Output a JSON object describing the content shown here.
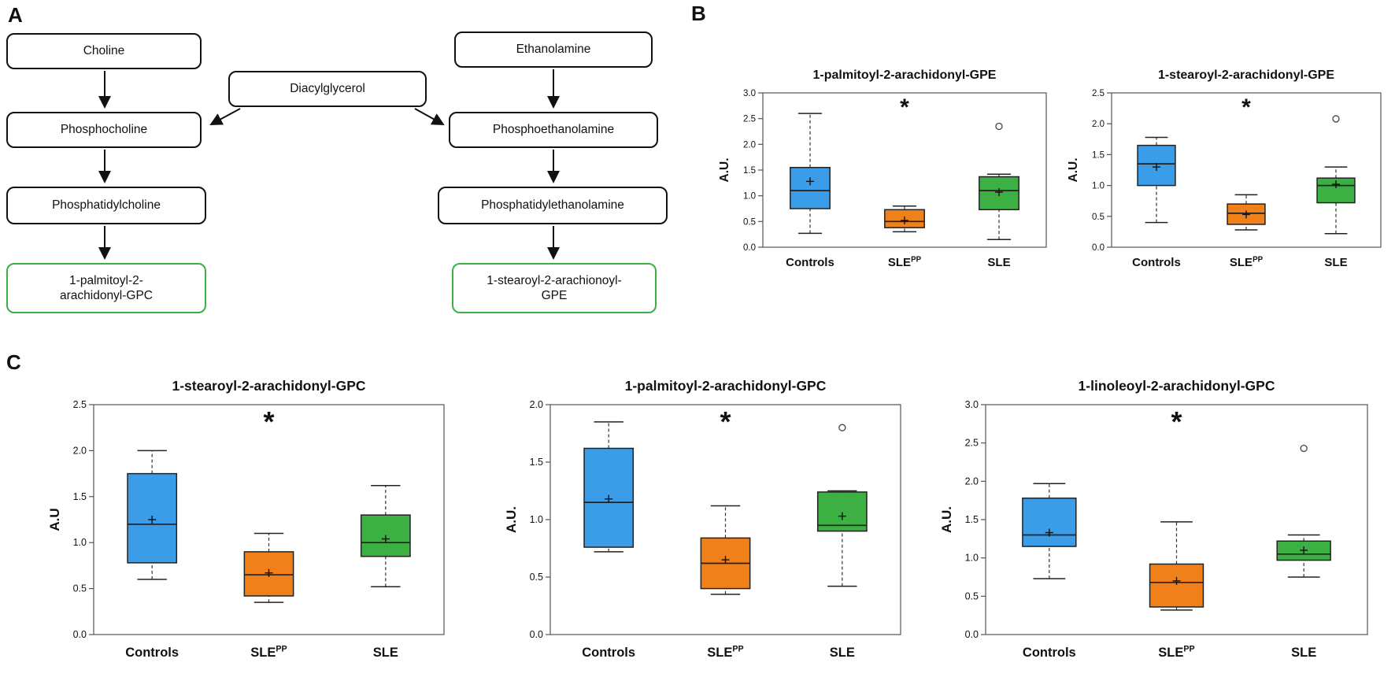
{
  "panels": {
    "a_label": "A",
    "b_label": "B",
    "c_label": "C"
  },
  "diagram": {
    "highlight_color": "#3CB043",
    "nodes": {
      "choline": "Choline",
      "phosphocholine": "Phosphocholine",
      "phosphatidylcholine": "Phosphatidylcholine",
      "gpc": "1-palmitoyl-2-\narachidonyl-GPC",
      "diacylglycerol": "Diacylglycerol",
      "ethanolamine": "Ethanolamine",
      "phosphoethanolamine": "Phosphoethanolamine",
      "phosphatidylethanolamine": "Phosphatidylethanolamine",
      "gpe": "1-stearoyl-2-arachionoyl-\nGPE"
    }
  },
  "chart_data": [
    {
      "type": "box",
      "title": "1-palmitoyl-2-arachidonyl-GPE",
      "ylabel": "A.U.",
      "ylim": [
        0,
        3.0
      ],
      "yticks": [
        0,
        0.5,
        1.0,
        1.5,
        2.0,
        2.5,
        3.0
      ],
      "categories": [
        "Controls",
        "SLE^PP",
        "SLE"
      ],
      "colors": [
        "#3B9CE8",
        "#F08019",
        "#3CB043"
      ],
      "legend_position": "none",
      "grid": false,
      "groups": [
        {
          "whislo": 0.27,
          "q1": 0.75,
          "med": 1.1,
          "q3": 1.55,
          "whishi": 2.6,
          "mean": 1.28,
          "outliers": []
        },
        {
          "whislo": 0.3,
          "q1": 0.38,
          "med": 0.5,
          "q3": 0.73,
          "whishi": 0.8,
          "mean": 0.52,
          "outliers": [],
          "star": true
        },
        {
          "whislo": 0.15,
          "q1": 0.73,
          "med": 1.1,
          "q3": 1.37,
          "whishi": 1.42,
          "mean": 1.07,
          "outliers": [
            2.35
          ]
        }
      ]
    },
    {
      "type": "box",
      "title": "1-stearoyl-2-arachidonyl-GPE",
      "ylabel": "A.U.",
      "ylim": [
        0,
        2.5
      ],
      "yticks": [
        0,
        0.5,
        1.0,
        1.5,
        2.0,
        2.5
      ],
      "categories": [
        "Controls",
        "SLE^PP",
        "SLE"
      ],
      "colors": [
        "#3B9CE8",
        "#F08019",
        "#3CB043"
      ],
      "legend_position": "none",
      "grid": false,
      "groups": [
        {
          "whislo": 0.4,
          "q1": 1.0,
          "med": 1.35,
          "q3": 1.65,
          "whishi": 1.78,
          "mean": 1.3,
          "outliers": []
        },
        {
          "whislo": 0.28,
          "q1": 0.37,
          "med": 0.55,
          "q3": 0.7,
          "whishi": 0.85,
          "mean": 0.53,
          "outliers": [],
          "star": true
        },
        {
          "whislo": 0.22,
          "q1": 0.72,
          "med": 1.0,
          "q3": 1.12,
          "whishi": 1.3,
          "mean": 1.02,
          "outliers": [
            2.08
          ]
        }
      ]
    },
    {
      "type": "box",
      "title": "1-stearoyl-2-arachidonyl-GPC",
      "ylabel": "A.U",
      "ylim": [
        0,
        2.5
      ],
      "yticks": [
        0,
        0.5,
        1.0,
        1.5,
        2.0,
        2.5
      ],
      "categories": [
        "Controls",
        "SLE^PP",
        "SLE"
      ],
      "colors": [
        "#3B9CE8",
        "#F08019",
        "#3CB043"
      ],
      "legend_position": "none",
      "grid": false,
      "groups": [
        {
          "whislo": 0.6,
          "q1": 0.78,
          "med": 1.2,
          "q3": 1.75,
          "whishi": 2.0,
          "mean": 1.25,
          "outliers": []
        },
        {
          "whislo": 0.35,
          "q1": 0.42,
          "med": 0.65,
          "q3": 0.9,
          "whishi": 1.1,
          "mean": 0.67,
          "outliers": [],
          "star": true
        },
        {
          "whislo": 0.52,
          "q1": 0.85,
          "med": 1.0,
          "q3": 1.3,
          "whishi": 1.62,
          "mean": 1.04,
          "outliers": []
        }
      ]
    },
    {
      "type": "box",
      "title": "1-palmitoyl-2-arachidonyl-GPC",
      "ylabel": "A.U.",
      "ylim": [
        0,
        2.0
      ],
      "yticks": [
        0,
        0.5,
        1.0,
        1.5,
        2.0
      ],
      "categories": [
        "Controls",
        "SLE^PP",
        "SLE"
      ],
      "colors": [
        "#3B9CE8",
        "#F08019",
        "#3CB043"
      ],
      "legend_position": "none",
      "grid": false,
      "groups": [
        {
          "whislo": 0.72,
          "q1": 0.76,
          "med": 1.15,
          "q3": 1.62,
          "whishi": 1.85,
          "mean": 1.18,
          "outliers": []
        },
        {
          "whislo": 0.35,
          "q1": 0.4,
          "med": 0.62,
          "q3": 0.84,
          "whishi": 1.12,
          "mean": 0.65,
          "outliers": [],
          "star": true
        },
        {
          "whislo": 0.42,
          "q1": 0.9,
          "med": 0.95,
          "q3": 1.24,
          "whishi": 1.25,
          "mean": 1.03,
          "outliers": [
            1.8
          ]
        }
      ]
    },
    {
      "type": "box",
      "title": "1-linoleoyl-2-arachidonyl-GPC",
      "ylabel": "A.U.",
      "ylim": [
        0,
        3.0
      ],
      "yticks": [
        0,
        0.5,
        1.0,
        1.5,
        2.0,
        2.5,
        3.0
      ],
      "categories": [
        "Controls",
        "SLE^PP",
        "SLE"
      ],
      "colors": [
        "#3B9CE8",
        "#F08019",
        "#3CB043"
      ],
      "legend_position": "none",
      "grid": false,
      "groups": [
        {
          "whislo": 0.73,
          "q1": 1.15,
          "med": 1.3,
          "q3": 1.78,
          "whishi": 1.97,
          "mean": 1.33,
          "outliers": []
        },
        {
          "whislo": 0.32,
          "q1": 0.36,
          "med": 0.68,
          "q3": 0.92,
          "whishi": 1.47,
          "mean": 0.7,
          "outliers": [],
          "star": true
        },
        {
          "whislo": 0.75,
          "q1": 0.97,
          "med": 1.05,
          "q3": 1.22,
          "whishi": 1.3,
          "mean": 1.1,
          "outliers": [
            2.43
          ]
        }
      ]
    }
  ]
}
